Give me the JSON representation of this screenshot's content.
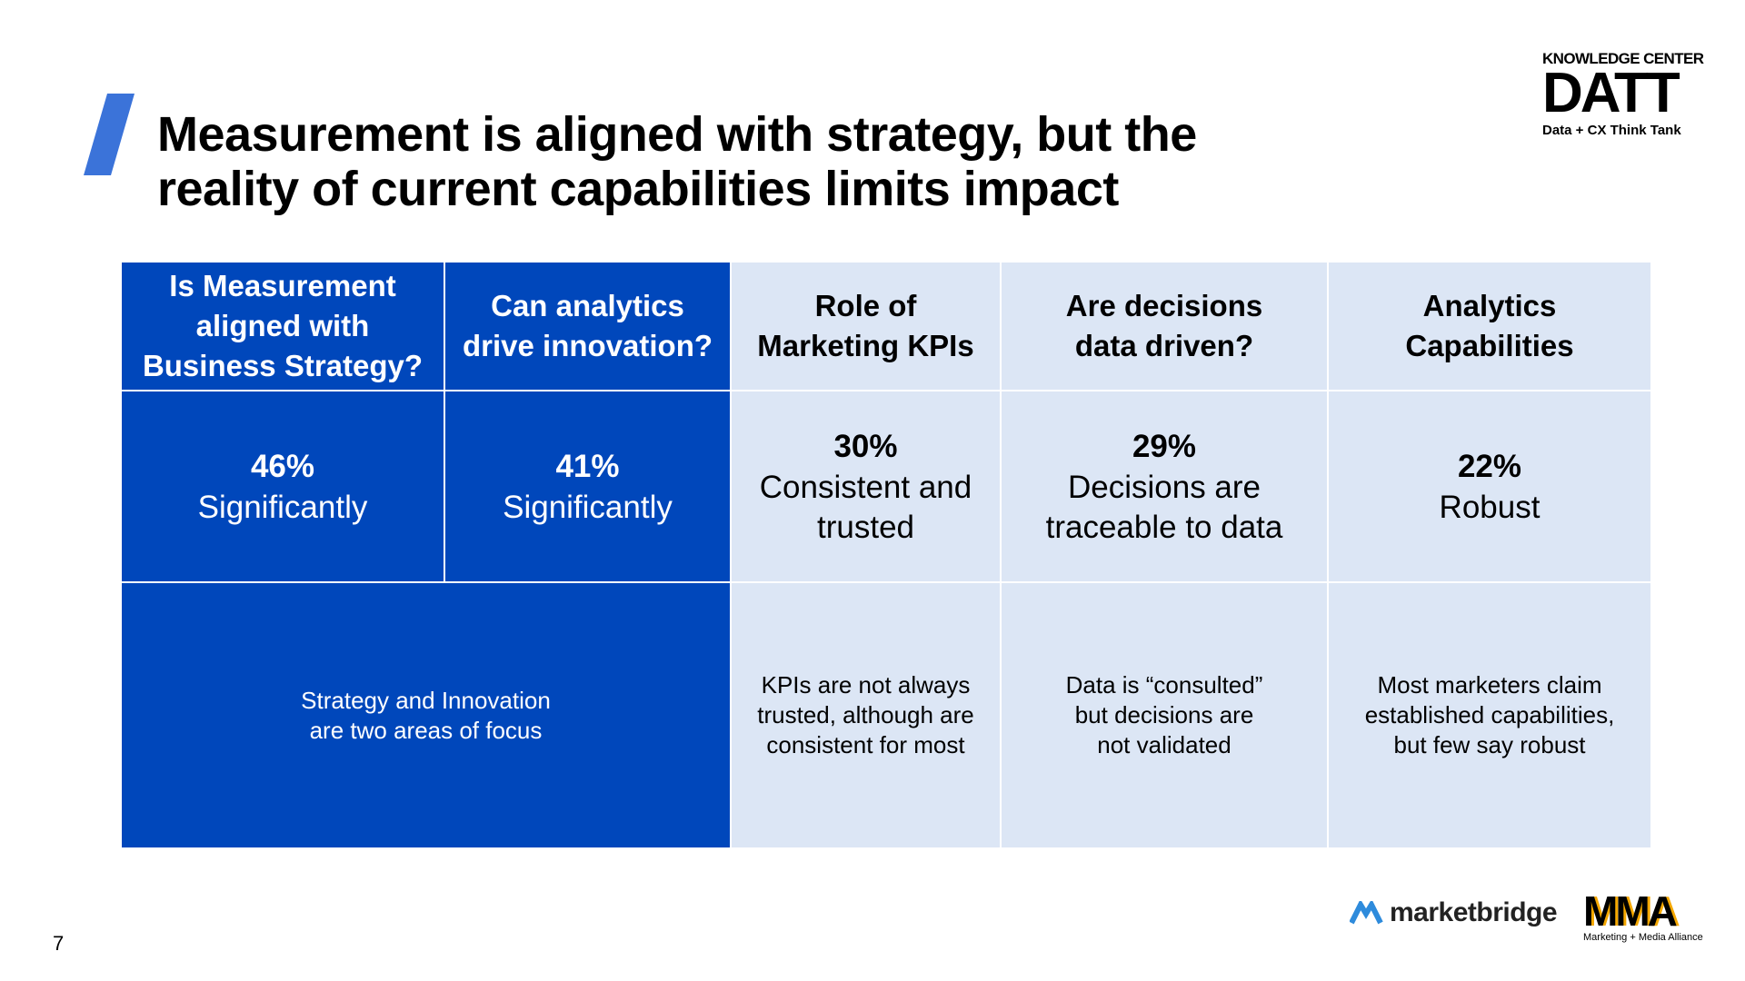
{
  "header": {
    "title_lines": [
      "Measurement is aligned with strategy, but the",
      "reality of current capabilities limits impact"
    ]
  },
  "brand": {
    "top": "KNOWLEDGE CENTER",
    "name": "DATT",
    "tagline": "Data + CX Think Tank"
  },
  "table": {
    "columns": [
      [
        "Is Measurement",
        "aligned with",
        "Business Strategy?"
      ],
      [
        "Can analytics",
        "drive innovation?"
      ],
      [
        "Role of",
        "Marketing KPIs"
      ],
      [
        "Are decisions",
        "data driven?"
      ],
      [
        "Analytics",
        "Capabilities"
      ]
    ],
    "stats": [
      {
        "value": "46%",
        "label": [
          "Significantly"
        ]
      },
      {
        "value": "41%",
        "label": [
          "Significantly"
        ]
      },
      {
        "value": "30%",
        "label": [
          "Consistent and",
          "trusted"
        ]
      },
      {
        "value": "29%",
        "label": [
          "Decisions are",
          "traceable to data"
        ]
      },
      {
        "value": "22%",
        "label": [
          "Robust"
        ]
      }
    ],
    "notes": [
      [
        "Strategy and Innovation",
        "are two areas of focus"
      ],
      [
        "KPIs are not always",
        "trusted, although are",
        "consistent for most"
      ],
      [
        "Data is “consulted”",
        "but decisions are",
        "not validated"
      ],
      [
        "Most marketers claim",
        "established capabilities,",
        "but few say robust"
      ]
    ]
  },
  "footer": {
    "page": "7",
    "partner1": "marketbridge",
    "partner2": "MMA",
    "partner2_sub": "Marketing + Media Alliance"
  }
}
